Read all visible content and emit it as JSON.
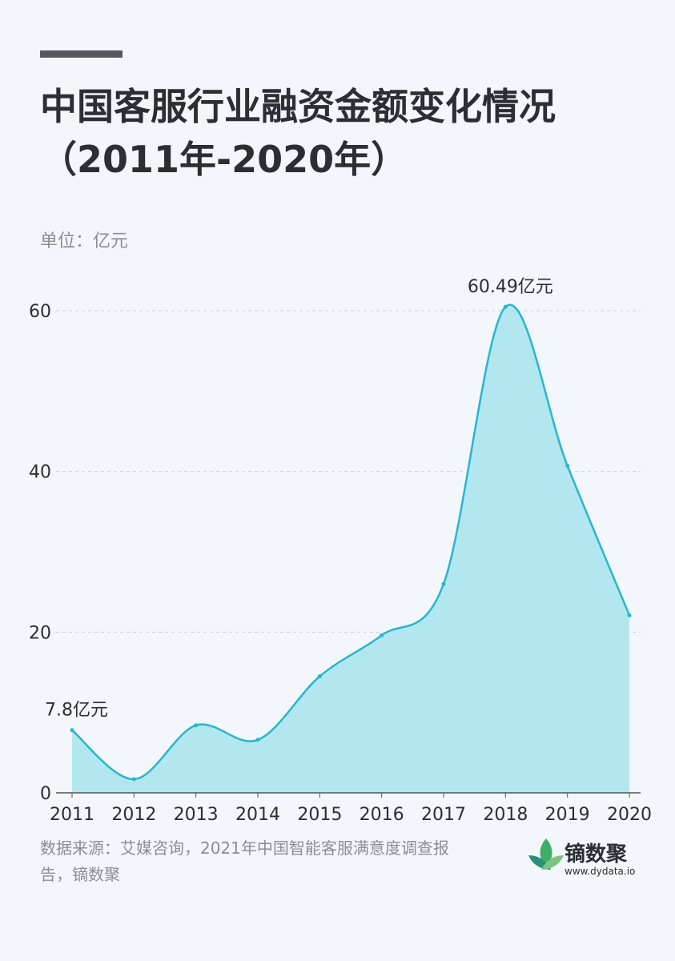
{
  "chart_data": {
    "type": "area",
    "title": "中国客服行业融资金额变化情况（2011年-2020年）",
    "unit_label": "单位：亿元",
    "categories": [
      "2011",
      "2012",
      "2013",
      "2014",
      "2015",
      "2016",
      "2017",
      "2018",
      "2019",
      "2020"
    ],
    "series": [
      {
        "color": "#29b6cc",
        "values": [
          7.8,
          1.7,
          8.4,
          6.6,
          14.5,
          19.6,
          26.0,
          60.49,
          40.7,
          22.1
        ],
        "value_labels": [
          "7.8亿元",
          null,
          null,
          null,
          null,
          null,
          null,
          "60.49亿元",
          null,
          null
        ]
      }
    ],
    "ylim": [
      0,
      60
    ],
    "yticks": [
      0,
      20,
      40,
      60
    ],
    "grid": true,
    "source": "数据来源：艾媒咨询，2021年中国智能客服满意度调查报告，镝数聚",
    "logo": {
      "name": "镝数聚",
      "url": "www.dydata.io"
    }
  }
}
